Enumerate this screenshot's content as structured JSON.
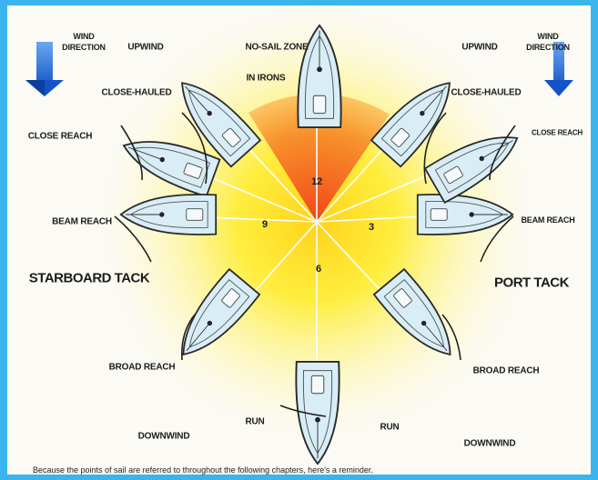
{
  "wind_label": "WIND\nDIRECTION",
  "labels": {
    "no_sail_zone": "NO-SAIL ZONE",
    "in_irons": "IN IRONS",
    "upwind": "UPWIND",
    "close_hauled": "CLOSE-HAULED",
    "close_reach": "CLOSE REACH",
    "beam_reach": "BEAM REACH",
    "broad_reach": "BROAD REACH",
    "run": "RUN",
    "downwind": "DOWNWIND"
  },
  "clock": {
    "twelve": "12",
    "three": "3",
    "six": "6",
    "nine": "9"
  },
  "tacks": {
    "starboard": "STARBOARD TACK",
    "port": "PORT TACK"
  },
  "caption": "Because the points of sail are referred to throughout the following chapters, here's a reminder.",
  "colors": {
    "frame": "#3ab4ec",
    "wind_arrow": "#1e6fd8",
    "no_sail_red": "#f04a1c",
    "glow_yellow": "#fff200",
    "boat_hull": "#d6ecf5"
  }
}
